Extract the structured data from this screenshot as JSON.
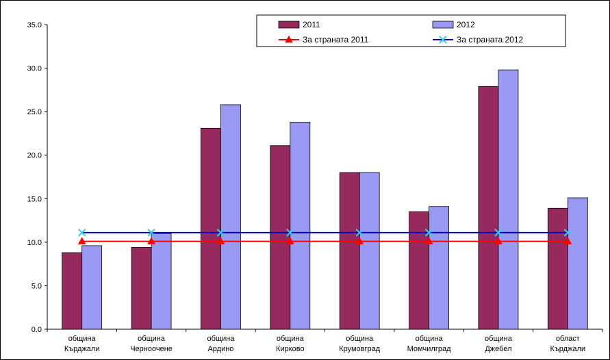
{
  "chart_data": {
    "type": "bar",
    "categories": [
      [
        "община",
        "Кърджали"
      ],
      [
        "община",
        "Черноочене"
      ],
      [
        "община",
        "Ардино"
      ],
      [
        "община",
        "Кирково"
      ],
      [
        "община",
        "Крумовград"
      ],
      [
        "община",
        "Момчилград"
      ],
      [
        "община",
        "Джебел"
      ],
      [
        "област",
        "Кърджали"
      ]
    ],
    "series": [
      {
        "name": "2011",
        "kind": "bar",
        "color": "#962a5e",
        "values": [
          8.8,
          9.4,
          23.1,
          21.1,
          18.0,
          13.5,
          27.9,
          13.9
        ]
      },
      {
        "name": "2012",
        "kind": "bar",
        "color": "#9a9af5",
        "values": [
          9.6,
          11.0,
          25.8,
          23.8,
          18.0,
          14.1,
          29.8,
          15.1
        ]
      },
      {
        "name": "За страната 2011",
        "kind": "line",
        "color": "#ff0000",
        "marker": "triangle",
        "values": [
          10.1,
          10.1,
          10.1,
          10.1,
          10.1,
          10.1,
          10.1,
          10.1
        ]
      },
      {
        "name": "За страната 2012",
        "kind": "line",
        "color": "#0000cc",
        "marker_color": "#33ccff",
        "marker": "x",
        "values": [
          11.1,
          11.1,
          11.1,
          11.1,
          11.1,
          11.1,
          11.1,
          11.1
        ]
      }
    ],
    "ylim": [
      0,
      35
    ],
    "yticks": [
      "0.0",
      "5.0",
      "10.0",
      "15.0",
      "20.0",
      "25.0",
      "30.0",
      "35.0"
    ],
    "grid": false,
    "legend_position": "top-right"
  }
}
